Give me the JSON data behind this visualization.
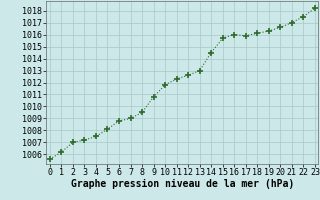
{
  "x": [
    0,
    1,
    2,
    3,
    4,
    5,
    6,
    7,
    8,
    9,
    10,
    11,
    12,
    13,
    14,
    15,
    16,
    17,
    18,
    19,
    20,
    21,
    22,
    23
  ],
  "y": [
    1005.6,
    1006.2,
    1007.0,
    1007.2,
    1007.5,
    1008.1,
    1008.8,
    1009.0,
    1009.5,
    1010.8,
    1011.8,
    1012.3,
    1012.6,
    1013.0,
    1014.5,
    1015.7,
    1016.0,
    1015.9,
    1016.1,
    1016.3,
    1016.6,
    1017.0,
    1017.5,
    1018.2
  ],
  "line_color": "#2d6a2d",
  "marker": "+",
  "marker_size": 4,
  "bg_color": "#cce8e8",
  "grid_color": "#aac8c8",
  "xlabel": "Graphe pression niveau de la mer (hPa)",
  "xlabel_fontsize": 7,
  "xtick_labels": [
    "0",
    "1",
    "2",
    "3",
    "4",
    "5",
    "6",
    "7",
    "8",
    "9",
    "10",
    "11",
    "12",
    "13",
    "14",
    "15",
    "16",
    "17",
    "18",
    "19",
    "20",
    "21",
    "22",
    "23"
  ],
  "ytick_min": 1006,
  "ytick_max": 1018,
  "ytick_step": 1,
  "ylim_min": 1005.2,
  "ylim_max": 1018.8,
  "xlim_min": -0.3,
  "xlim_max": 23.3,
  "tick_fontsize": 6,
  "spine_color": "#666666"
}
